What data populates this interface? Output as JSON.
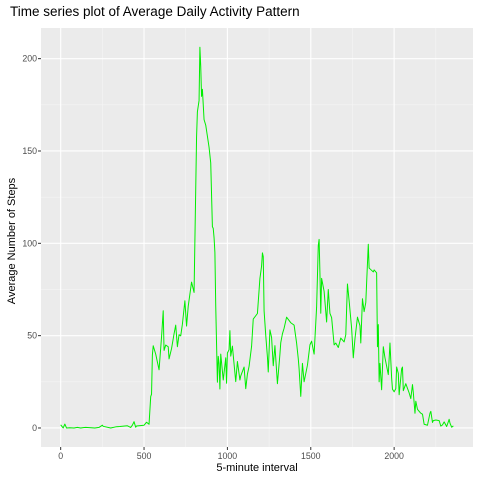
{
  "chart_data": {
    "type": "line",
    "title": "Time series plot of Average Daily Activity Pattern",
    "xlabel": "5-minute interval",
    "ylabel": "Average Number of Steps",
    "xlim": [
      -118,
      2473
    ],
    "ylim": [
      -10.3,
      216.6
    ],
    "xticks": [
      0,
      500,
      1000,
      1500,
      2000
    ],
    "xtick_labels": [
      "0",
      "500",
      "1000",
      "1500",
      "2000"
    ],
    "yticks": [
      0,
      50,
      100,
      150,
      200
    ],
    "ytick_labels": [
      "0",
      "50",
      "100",
      "150",
      "200"
    ],
    "grid": true,
    "legend": "none",
    "colors": {
      "line": "#00ee00",
      "panel": "#ebebeb",
      "grid_major": "#ffffff",
      "grid_minor": "#f5f5f5",
      "tick_text": "#4d4d4d",
      "tick_mark": "#333333"
    },
    "series": [
      {
        "points": [
          [
            0,
            1.7
          ],
          [
            15,
            0.0
          ],
          [
            25,
            2.1
          ],
          [
            35,
            0.0
          ],
          [
            55,
            0.1
          ],
          [
            80,
            0.0
          ],
          [
            100,
            0.3
          ],
          [
            120,
            0.0
          ],
          [
            135,
            0.2
          ],
          [
            150,
            0.3
          ],
          [
            205,
            0.0
          ],
          [
            230,
            0.3
          ],
          [
            250,
            1.5
          ],
          [
            255,
            0.9
          ],
          [
            300,
            0.0
          ],
          [
            335,
            0.7
          ],
          [
            355,
            0.8
          ],
          [
            400,
            1.2
          ],
          [
            420,
            0.3
          ],
          [
            430,
            1.5
          ],
          [
            440,
            3.4
          ],
          [
            450,
            0.4
          ],
          [
            455,
            1.1
          ],
          [
            500,
            1.5
          ],
          [
            515,
            3.1
          ],
          [
            530,
            2.0
          ],
          [
            540,
            17.0
          ],
          [
            545,
            18.3
          ],
          [
            550,
            39.5
          ],
          [
            555,
            44.5
          ],
          [
            570,
            40.0
          ],
          [
            590,
            31.5
          ],
          [
            605,
            49.3
          ],
          [
            615,
            63.5
          ],
          [
            620,
            42.0
          ],
          [
            630,
            44.9
          ],
          [
            645,
            44.0
          ],
          [
            650,
            37.4
          ],
          [
            665,
            43.0
          ],
          [
            680,
            51.0
          ],
          [
            690,
            55.7
          ],
          [
            700,
            44.0
          ],
          [
            710,
            50.5
          ],
          [
            720,
            49.9
          ],
          [
            730,
            56.2
          ],
          [
            745,
            68.9
          ],
          [
            755,
            55.2
          ],
          [
            765,
            65.9
          ],
          [
            785,
            79.0
          ],
          [
            800,
            73.4
          ],
          [
            810,
            129.4
          ],
          [
            815,
            157.5
          ],
          [
            820,
            171.2
          ],
          [
            830,
            177.3
          ],
          [
            835,
            206.2
          ],
          [
            840,
            195.9
          ],
          [
            845,
            179.6
          ],
          [
            850,
            183.4
          ],
          [
            860,
            167.0
          ],
          [
            870,
            164.0
          ],
          [
            880,
            158.0
          ],
          [
            890,
            152.0
          ],
          [
            900,
            143.5
          ],
          [
            910,
            109.0
          ],
          [
            915,
            108.1
          ],
          [
            920,
            103.0
          ],
          [
            925,
            95.0
          ],
          [
            930,
            66.2
          ],
          [
            935,
            45.2
          ],
          [
            940,
            24.8
          ],
          [
            945,
            38.8
          ],
          [
            950,
            34.9
          ],
          [
            955,
            21.1
          ],
          [
            960,
            40.0
          ],
          [
            975,
            26.0
          ],
          [
            990,
            38.0
          ],
          [
            995,
            24.2
          ],
          [
            1000,
            40.6
          ],
          [
            1010,
            42.4
          ],
          [
            1015,
            52.7
          ],
          [
            1020,
            38.9
          ],
          [
            1030,
            44.3
          ],
          [
            1040,
            34.6
          ],
          [
            1050,
            25.1
          ],
          [
            1060,
            36.0
          ],
          [
            1075,
            26.0
          ],
          [
            1080,
            28.2
          ],
          [
            1100,
            33.0
          ],
          [
            1110,
            21.3
          ],
          [
            1120,
            29.1
          ],
          [
            1130,
            33.4
          ],
          [
            1145,
            44.2
          ],
          [
            1155,
            59.0
          ],
          [
            1180,
            62.0
          ],
          [
            1195,
            81.0
          ],
          [
            1205,
            87.7
          ],
          [
            1210,
            94.8
          ],
          [
            1215,
            92.8
          ],
          [
            1220,
            63.4
          ],
          [
            1230,
            50.2
          ],
          [
            1240,
            38.5
          ],
          [
            1245,
            30.3
          ],
          [
            1255,
            53.1
          ],
          [
            1265,
            49.0
          ],
          [
            1275,
            33.7
          ],
          [
            1285,
            44.6
          ],
          [
            1300,
            24.0
          ],
          [
            1315,
            40.0
          ],
          [
            1320,
            46.2
          ],
          [
            1330,
            51.0
          ],
          [
            1340,
            54.0
          ],
          [
            1355,
            60.0
          ],
          [
            1380,
            57.0
          ],
          [
            1400,
            55.7
          ],
          [
            1415,
            46.0
          ],
          [
            1425,
            37.5
          ],
          [
            1430,
            32.0
          ],
          [
            1440,
            17.1
          ],
          [
            1450,
            35.0
          ],
          [
            1460,
            25.0
          ],
          [
            1480,
            34.0
          ],
          [
            1495,
            45.0
          ],
          [
            1505,
            47.0
          ],
          [
            1520,
            40.0
          ],
          [
            1535,
            65.4
          ],
          [
            1545,
            98.7
          ],
          [
            1550,
            102.1
          ],
          [
            1555,
            83.8
          ],
          [
            1560,
            62.1
          ],
          [
            1565,
            81.0
          ],
          [
            1580,
            74.0
          ],
          [
            1595,
            57.4
          ],
          [
            1605,
            75.0
          ],
          [
            1615,
            62.0
          ],
          [
            1625,
            59.8
          ],
          [
            1640,
            45.0
          ],
          [
            1650,
            46.0
          ],
          [
            1665,
            43.6
          ],
          [
            1680,
            48.7
          ],
          [
            1700,
            46.6
          ],
          [
            1710,
            50.5
          ],
          [
            1720,
            78.0
          ],
          [
            1730,
            68.9
          ],
          [
            1745,
            54.0
          ],
          [
            1755,
            38.0
          ],
          [
            1765,
            48.2
          ],
          [
            1780,
            60.0
          ],
          [
            1795,
            55.4
          ],
          [
            1800,
            46.0
          ],
          [
            1810,
            70.0
          ],
          [
            1820,
            63.0
          ],
          [
            1830,
            68.0
          ],
          [
            1845,
            99.5
          ],
          [
            1850,
            86.6
          ],
          [
            1875,
            84.5
          ],
          [
            1880,
            85.6
          ],
          [
            1895,
            84.0
          ],
          [
            1900,
            44.0
          ],
          [
            1905,
            56.0
          ],
          [
            1910,
            25.0
          ],
          [
            1915,
            35.0
          ],
          [
            1925,
            20.7
          ],
          [
            1935,
            44.0
          ],
          [
            1945,
            38.0
          ],
          [
            1955,
            33.5
          ],
          [
            1965,
            28.9
          ],
          [
            1975,
            46.0
          ],
          [
            1985,
            27.0
          ],
          [
            1990,
            21.0
          ],
          [
            2000,
            19.6
          ],
          [
            2010,
            21.3
          ],
          [
            2015,
            33.0
          ],
          [
            2025,
            29.6
          ],
          [
            2030,
            18.0
          ],
          [
            2045,
            32.0
          ],
          [
            2050,
            33.0
          ],
          [
            2055,
            20.2
          ],
          [
            2070,
            24.0
          ],
          [
            2080,
            21.5
          ],
          [
            2090,
            19.0
          ],
          [
            2100,
            15.9
          ],
          [
            2110,
            23.5
          ],
          [
            2115,
            19.2
          ],
          [
            2125,
            8.0
          ],
          [
            2130,
            14.5
          ],
          [
            2140,
            10.1
          ],
          [
            2150,
            9.0
          ],
          [
            2160,
            8.0
          ],
          [
            2170,
            7.5
          ],
          [
            2180,
            2.0
          ],
          [
            2200,
            1.5
          ],
          [
            2215,
            8.0
          ],
          [
            2220,
            9.0
          ],
          [
            2230,
            3.0
          ],
          [
            2235,
            4.0
          ],
          [
            2250,
            4.3
          ],
          [
            2270,
            4.0
          ],
          [
            2280,
            1.0
          ],
          [
            2290,
            1.7
          ],
          [
            2300,
            3.3
          ],
          [
            2315,
            0.8
          ],
          [
            2330,
            4.7
          ],
          [
            2335,
            2.6
          ],
          [
            2345,
            0.4
          ],
          [
            2355,
            1.1
          ]
        ]
      }
    ]
  }
}
